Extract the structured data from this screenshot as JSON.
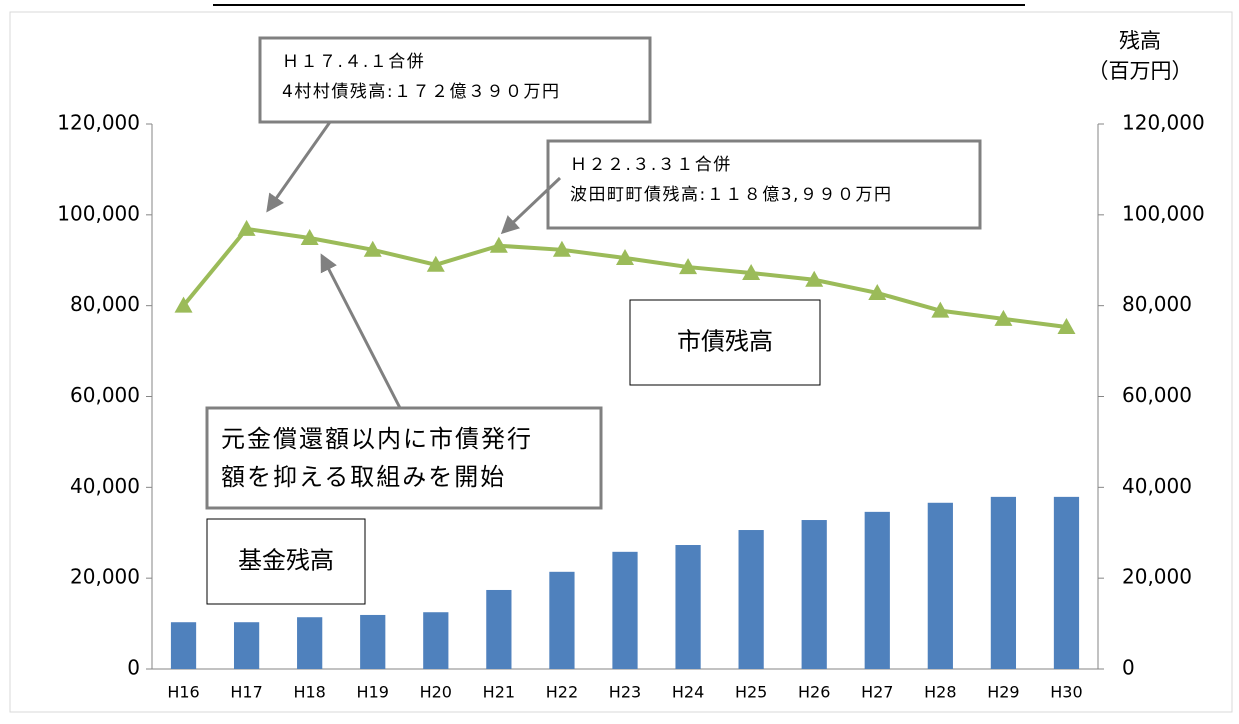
{
  "chart_data": {
    "type": "bar_line",
    "categories": [
      "H16",
      "H17",
      "H18",
      "H19",
      "H20",
      "H21",
      "H22",
      "H23",
      "H24",
      "H25",
      "H26",
      "H27",
      "H28",
      "H29",
      "H30"
    ],
    "series": [
      {
        "name": "基金残高",
        "type": "bar",
        "color": "#4f81bd",
        "axis": "y",
        "values": [
          10300,
          10300,
          11400,
          11900,
          12500,
          17400,
          21400,
          25800,
          27300,
          30600,
          32800,
          34600,
          36600,
          37900,
          37900
        ]
      },
      {
        "name": "市債残高",
        "type": "line",
        "color": "#9bbb59",
        "axis": "y2",
        "values": [
          80000,
          96900,
          94900,
          92300,
          89000,
          93200,
          92300,
          90500,
          88500,
          87200,
          85700,
          82800,
          78900,
          77100,
          75300
        ]
      }
    ],
    "ylim": [
      0,
      120000
    ],
    "yticks": [
      0,
      {
        "value": 20000,
        "label": "20,000"
      },
      {
        "value": 40000,
        "label": "40,000"
      },
      {
        "value": 60000,
        "label": "60,000"
      },
      {
        "value": 80000,
        "label": "80,000"
      },
      {
        "value": 100000,
        "label": "100,000"
      },
      {
        "value": 120000,
        "label": "120,000"
      }
    ],
    "y2lim": [
      0,
      120000
    ],
    "y2ticks": [
      0,
      {
        "value": 20000,
        "label": "20,000"
      },
      {
        "value": 40000,
        "label": "40,000"
      },
      {
        "value": 60000,
        "label": "60,000"
      },
      {
        "value": 80000,
        "label": "80,000"
      },
      {
        "value": 100000,
        "label": "100,000"
      },
      {
        "value": 120000,
        "label": "120,000"
      }
    ],
    "y2label": [
      "残高",
      "（百万円）"
    ],
    "annotations": [
      [
        "Ｈ１７.４.１合併",
        "4村村債残高:１７２億３９０万円"
      ],
      [
        "Ｈ２２.３.３１合併",
        "波田町町債残高:１１８億3,９９０万円"
      ],
      [
        "元金償還額以内に市債発行",
        "額を抑える取組みを開始"
      ]
    ]
  }
}
